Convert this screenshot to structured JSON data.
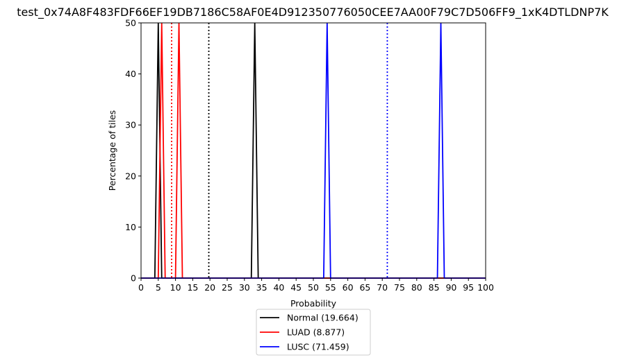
{
  "chart_data": {
    "type": "line",
    "title": "test_0x74A8F483FDF66EF19DB7186C58AF0E4D912350776050CEE7AA00F79C7D506FF9_1xK4DTLDNP7K",
    "xlabel": "Probability",
    "ylabel": "Percentage of tiles",
    "xlim": [
      0,
      100
    ],
    "ylim": [
      0,
      50
    ],
    "xticks": [
      0,
      5,
      10,
      15,
      20,
      25,
      30,
      35,
      40,
      45,
      50,
      55,
      60,
      65,
      70,
      75,
      80,
      85,
      90,
      95,
      100
    ],
    "yticks": [
      0,
      10,
      20,
      30,
      40,
      50
    ],
    "grid": false,
    "legend_position": "below",
    "series": [
      {
        "name": "Normal (19.664)",
        "color": "#000000",
        "x": [
          0,
          4,
          5,
          6,
          32,
          33,
          34,
          100
        ],
        "y": [
          0,
          0,
          50,
          0,
          0,
          50,
          0,
          0
        ],
        "mean": 19.664
      },
      {
        "name": "LUAD (8.877)",
        "color": "#ff0000",
        "x": [
          0,
          5,
          6,
          7,
          10,
          11,
          12,
          100
        ],
        "y": [
          0,
          0,
          50,
          0,
          0,
          50,
          0,
          0
        ],
        "mean": 8.877
      },
      {
        "name": "LUSC (71.459)",
        "color": "#0000ff",
        "x": [
          0,
          53,
          54,
          55,
          86,
          87,
          88,
          100
        ],
        "y": [
          0,
          0,
          50,
          0,
          0,
          50,
          0,
          0
        ],
        "mean": 71.459
      }
    ]
  }
}
